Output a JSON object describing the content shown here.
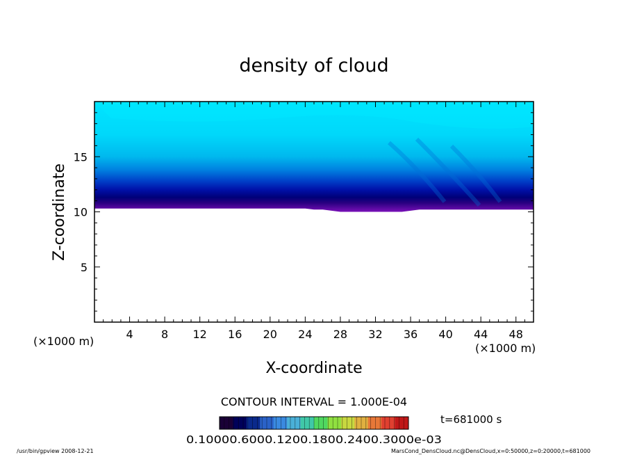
{
  "chart_data": {
    "type": "heatmap",
    "title": "density of cloud",
    "xlabel": "X-coordinate",
    "ylabel": "Z-coordinate",
    "x_unit": "(×1000 m)",
    "y_unit": "(×1000 m)",
    "xlim": [
      0,
      50
    ],
    "ylim": [
      0,
      20
    ],
    "x_ticks": [
      4,
      8,
      12,
      16,
      20,
      24,
      28,
      32,
      36,
      40,
      44,
      48
    ],
    "y_ticks": [
      5,
      10,
      15
    ],
    "x_tick_labels": [
      "4",
      "8",
      "12",
      "16",
      "20",
      "24",
      "28",
      "32",
      "36",
      "40",
      "44",
      "48"
    ],
    "y_tick_labels": [
      "5",
      "10",
      "15"
    ],
    "cloud_base_km": [
      10.3,
      10.3,
      10.3,
      10.3,
      10.3,
      10.3,
      10.3,
      10.3,
      10.3,
      10.3,
      10.3,
      10.3,
      10.3,
      10.3,
      10.3,
      10.3,
      10.3,
      10.3,
      10.3,
      10.3,
      10.3,
      10.3,
      10.3,
      10.3,
      10.3,
      10.2,
      10.2,
      10.1,
      10.0,
      10.0,
      10.0,
      10.0,
      10.0,
      10.0,
      10.0,
      10.0,
      10.1,
      10.2,
      10.2,
      10.2,
      10.2,
      10.2,
      10.2,
      10.2,
      10.2,
      10.2,
      10.2,
      10.2,
      10.2,
      10.2,
      10.2
    ],
    "contour_interval": "CONTOUR INTERVAL = 1.000E-04",
    "time_label": "t=681000 s",
    "colorbar_labels": "0.10000.6000.1200.1800.2400.3000e-03",
    "colorbar_colors": [
      "#1a0036",
      "#00005a",
      "#0a2a8c",
      "#2a62c8",
      "#3a8ae0",
      "#4ab0d8",
      "#40c8a8",
      "#50d860",
      "#90e040",
      "#c8d840",
      "#e0b040",
      "#e87838",
      "#e04030",
      "#c01818"
    ],
    "footer_left": "/usr/bin/gpview   2008-12-21",
    "footer_right": "MarsCond_DensCloud.nc@DensCloud,x=0:50000,z=0:20000,t=681000"
  }
}
